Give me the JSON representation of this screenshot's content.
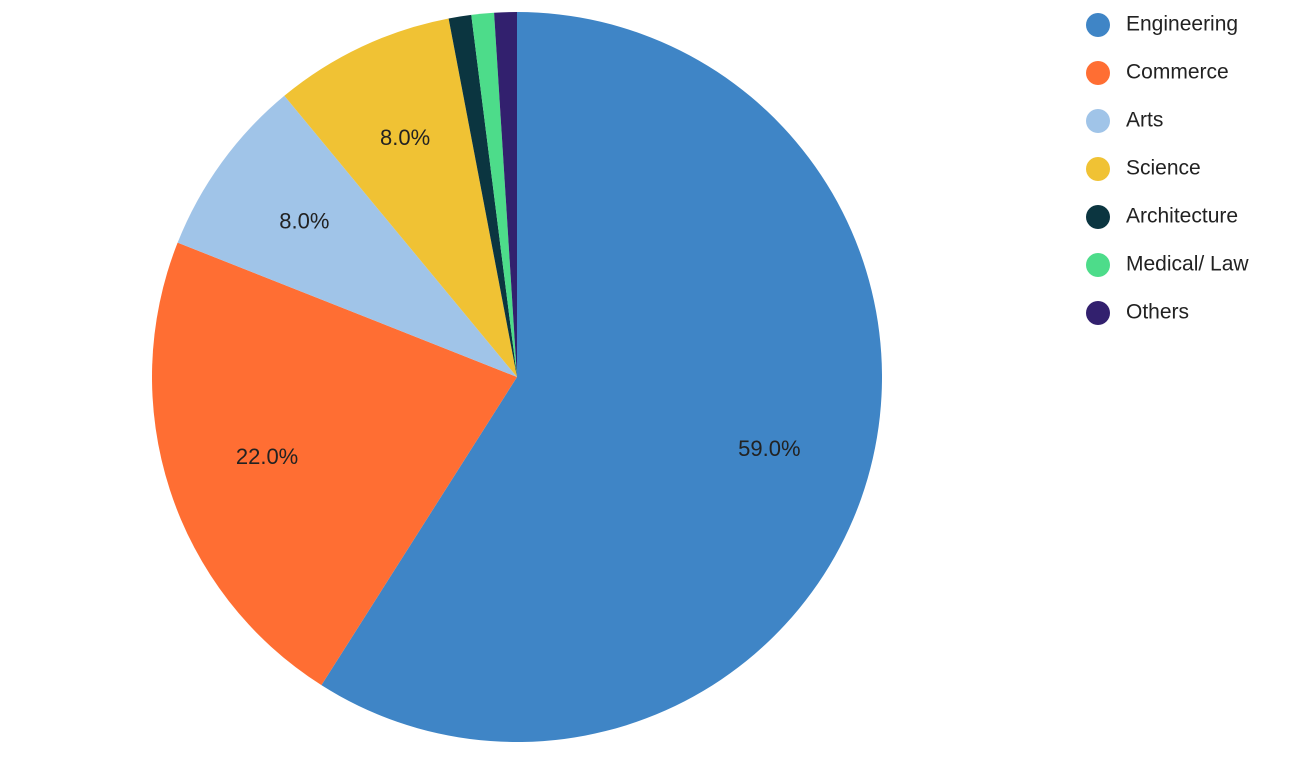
{
  "chart_data": {
    "type": "pie",
    "categories": [
      "Engineering",
      "Commerce",
      "Arts",
      "Science",
      "Architecture",
      "Medical/ Law",
      "Others"
    ],
    "values": [
      59,
      22,
      8,
      8,
      1,
      1,
      1
    ],
    "value_labels": [
      "59.0%",
      "22.0%",
      "8.0%",
      "8.0%",
      null,
      null,
      null
    ],
    "colors": [
      "#3f85c6",
      "#ff6e33",
      "#a0c4e8",
      "#f0c234",
      "#0b3540",
      "#4ddc8a",
      "#32206e"
    ],
    "legend": "top-right"
  }
}
